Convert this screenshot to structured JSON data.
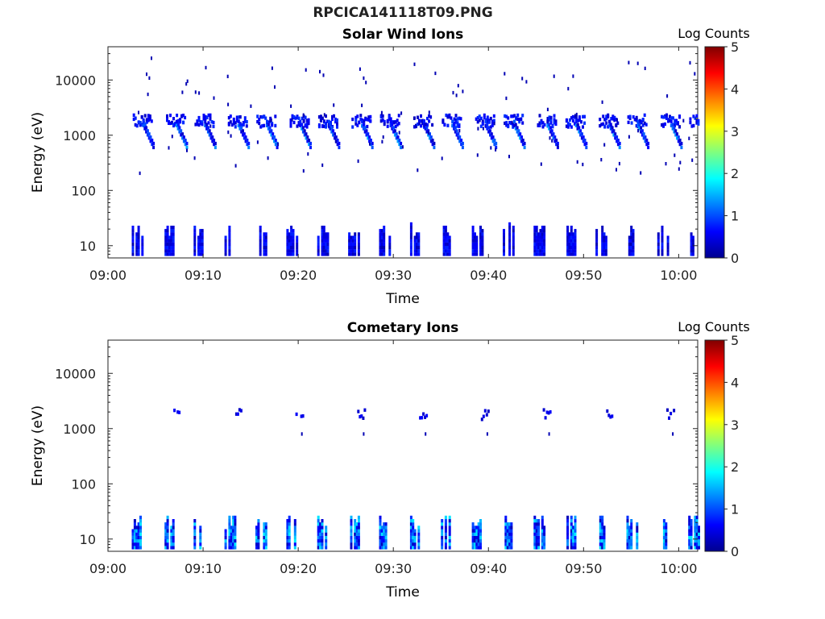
{
  "figure_title": "RPCICA141118T09.PNG",
  "chart_data": [
    {
      "type": "heatmap",
      "title": "Solar Wind Ions",
      "xlabel": "Time",
      "ylabel": "Energy (eV)",
      "x_range": [
        "09:00",
        "10:02"
      ],
      "x_ticks": [
        "09:00",
        "09:10",
        "09:20",
        "09:30",
        "09:40",
        "09:50",
        "10:00"
      ],
      "y_scale": "log",
      "ylim": [
        6,
        40000
      ],
      "y_ticks": [
        "10",
        "100",
        "1000",
        "10000"
      ],
      "colorbar": {
        "label": "Log Counts",
        "range": [
          0,
          5
        ],
        "ticks": [
          "0",
          "1",
          "2",
          "3",
          "4",
          "5"
        ],
        "colormap": "jet"
      },
      "periodic_bursts": {
        "times": [
          "09:03.5",
          "09:07.0",
          "09:10.0",
          "09:13.5",
          "09:16.5",
          "09:20.0",
          "09:23.0",
          "09:26.5",
          "09:29.5",
          "09:33.0",
          "09:36.0",
          "09:39.5",
          "09:42.5",
          "09:46.0",
          "09:49.0",
          "09:52.5",
          "09:55.5",
          "09:59.0",
          "10:02.0"
        ],
        "main_band_energy_eV": 1800,
        "tail_energy_eV": [
          600,
          1500
        ],
        "tail_peak_log_counts": 1.5,
        "low_energy_band_eV": [
          7,
          25
        ]
      }
    },
    {
      "type": "heatmap",
      "title": "Cometary Ions",
      "xlabel": "Time",
      "ylabel": "Energy (eV)",
      "x_range": [
        "09:00",
        "10:02"
      ],
      "x_ticks": [
        "09:00",
        "09:10",
        "09:20",
        "09:30",
        "09:40",
        "09:50",
        "10:00"
      ],
      "y_scale": "log",
      "ylim": [
        6,
        40000
      ],
      "y_ticks": [
        "10",
        "100",
        "1000",
        "10000"
      ],
      "colorbar": {
        "label": "Log Counts",
        "range": [
          0,
          5
        ],
        "ticks": [
          "0",
          "1",
          "2",
          "3",
          "4",
          "5"
        ],
        "colormap": "jet"
      },
      "periodic_bursts": {
        "times": [
          "09:07.0",
          "09:13.5",
          "09:20.0",
          "09:26.5",
          "09:33.0",
          "09:39.5",
          "09:46.0",
          "09:52.5",
          "09:59.0"
        ],
        "main_band_energy_eV": 1800,
        "low_energy_band_eV": [
          7,
          28
        ],
        "low_energy_peak_log_counts": 1.6
      }
    }
  ]
}
